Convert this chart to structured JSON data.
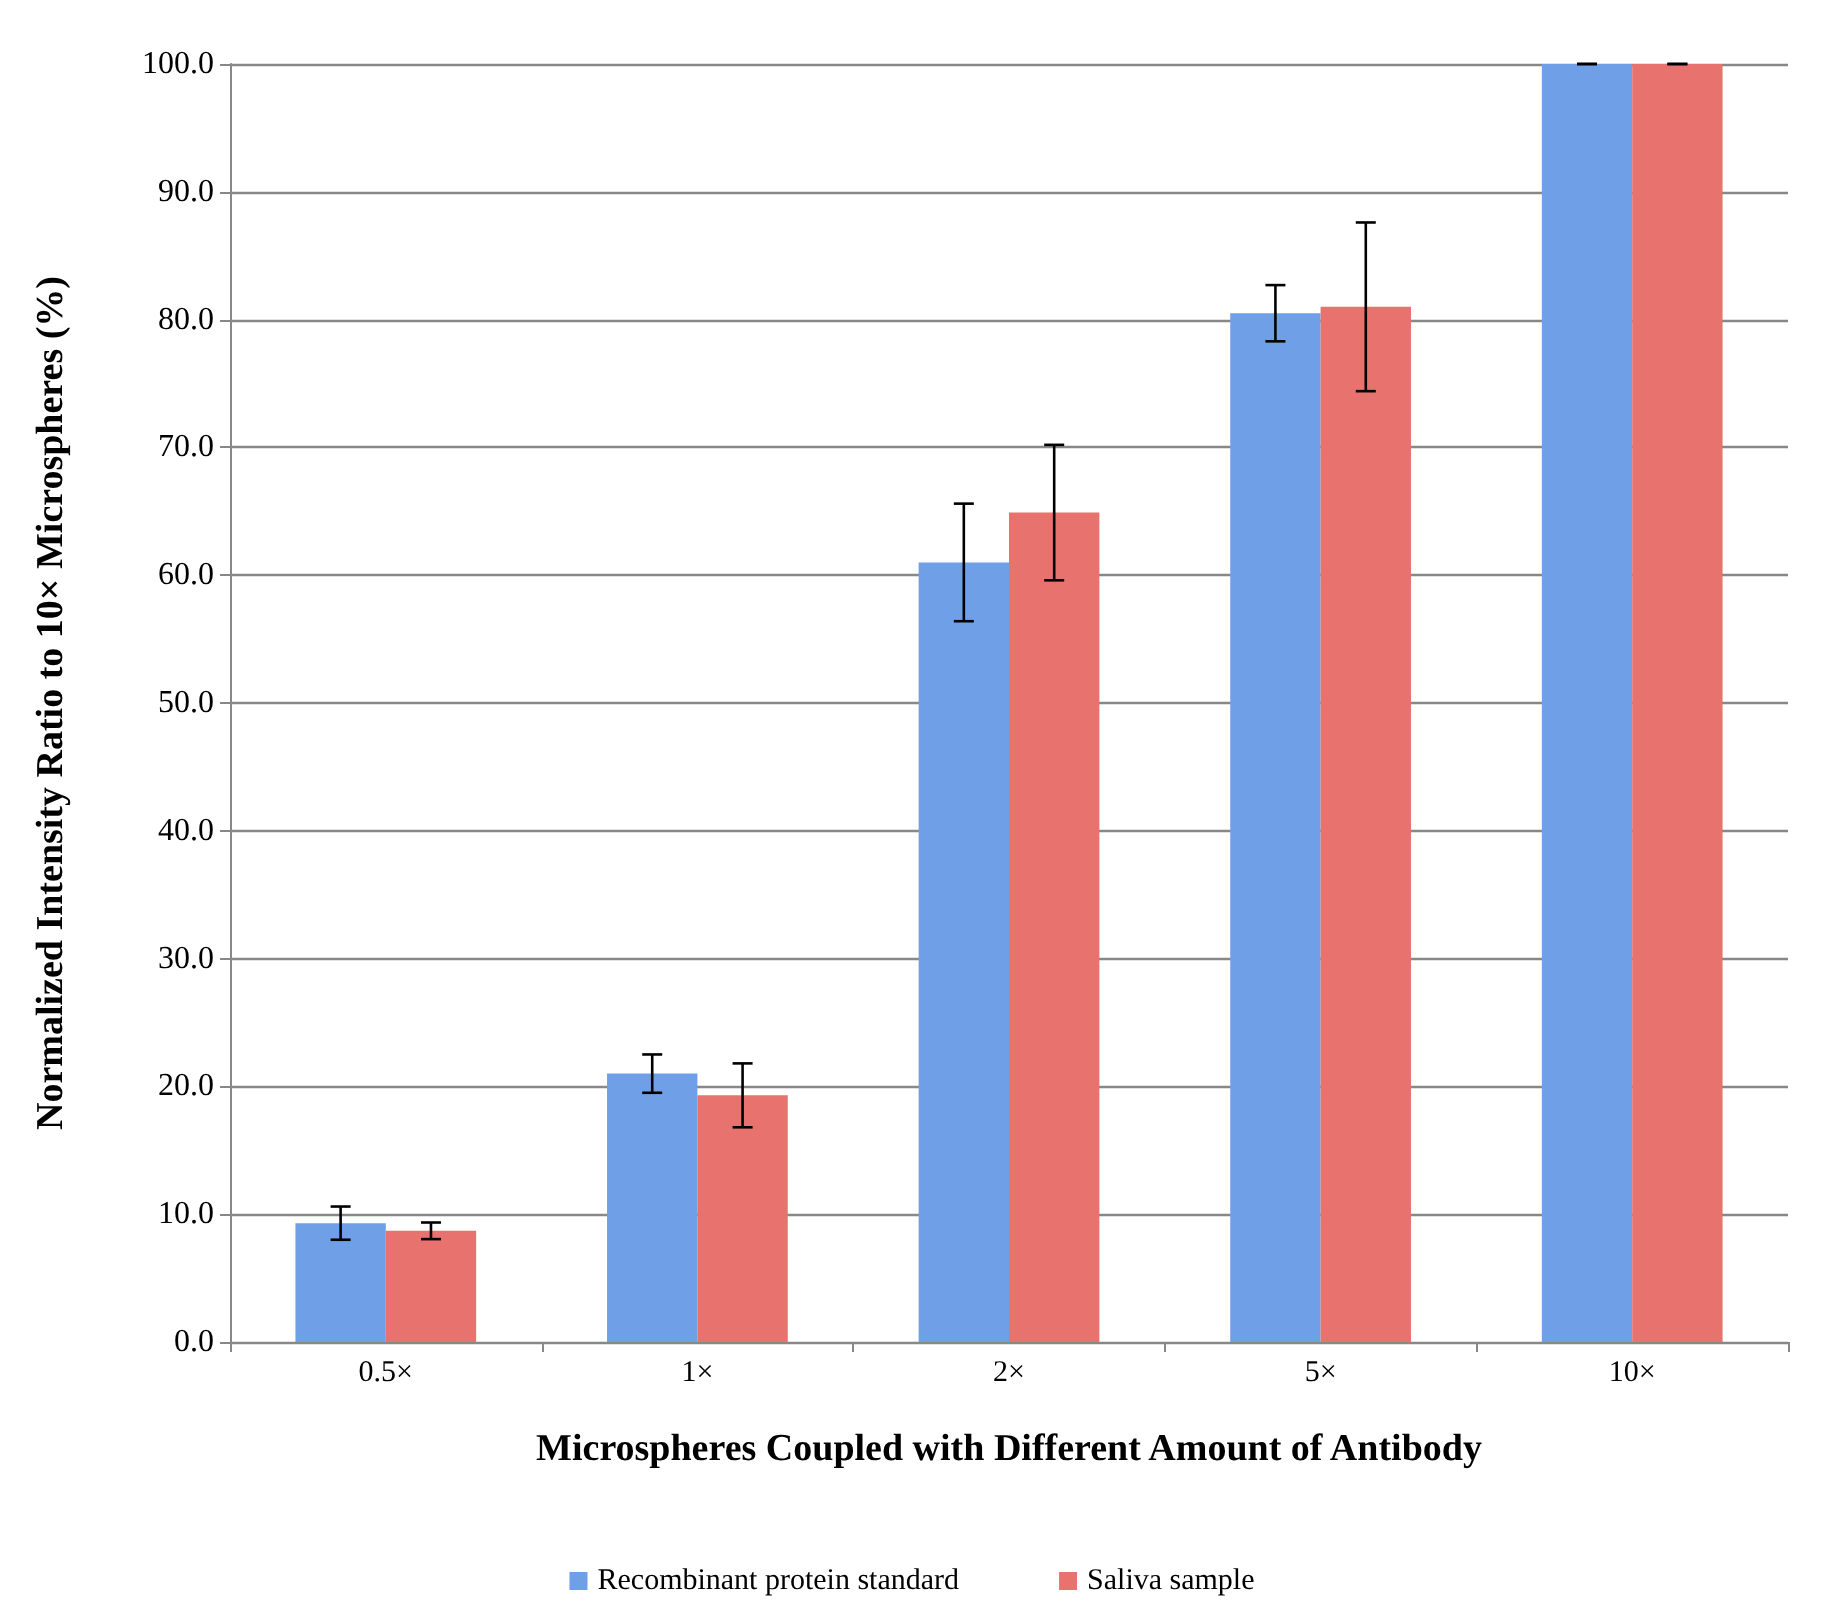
{
  "chart_data": {
    "type": "bar",
    "xlabel": "Microspheres Coupled with Different Amount of Antibody",
    "ylabel": "Normalized Intensity Ratio to 10× Microspheres (%)",
    "categories": [
      "0.5×",
      "1×",
      "2×",
      "5×",
      "10×"
    ],
    "series": [
      {
        "name": "Recombinant protein standard",
        "color": "#6f9fe6",
        "values": [
          9.3,
          21.0,
          61.0,
          80.5,
          100.0
        ],
        "errors": [
          1.3,
          1.5,
          4.6,
          2.2,
          0
        ]
      },
      {
        "name": "Saliva sample",
        "color": "#e8726e",
        "values": [
          8.7,
          19.3,
          64.9,
          81.0,
          100.0
        ],
        "errors": [
          0.65,
          2.5,
          5.3,
          6.6,
          0
        ]
      }
    ],
    "ylim": [
      0,
      100
    ],
    "yticks": [
      {
        "value": 0,
        "label": "0.0"
      },
      {
        "value": 10,
        "label": "10.0"
      },
      {
        "value": 20,
        "label": "20.0"
      },
      {
        "value": 30,
        "label": "30.0"
      },
      {
        "value": 40,
        "label": "40.0"
      },
      {
        "value": 50,
        "label": "50.0"
      },
      {
        "value": 60,
        "label": "60.0"
      },
      {
        "value": 70,
        "label": "70.0"
      },
      {
        "value": 80,
        "label": "80.0"
      },
      {
        "value": 90,
        "label": "90.0"
      },
      {
        "value": 100,
        "label": "100.0"
      }
    ],
    "grid": "y",
    "legend": "bottom"
  }
}
